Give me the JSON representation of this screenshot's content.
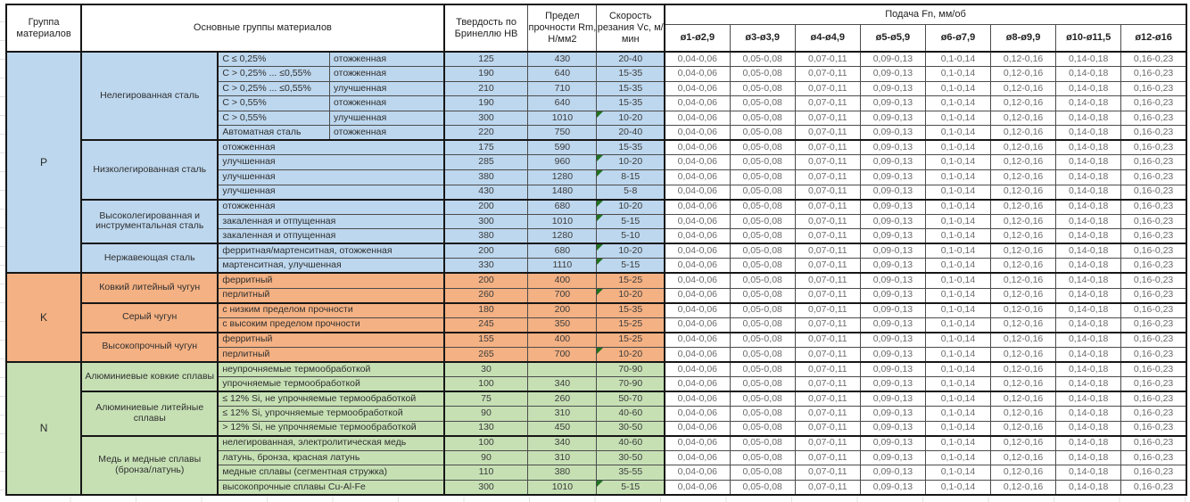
{
  "header": {
    "material_group": "Группа материалов",
    "main_groups": "Основные группы материалов",
    "hardness": "Твердость по Бринеллю HB",
    "strength": "Предел прочности Rm, Н/мм2",
    "cutting_speed": "Скорость резания Vc, м/мин",
    "feed_group": "Подача Fn, мм/об",
    "feed_cols": [
      "ø1-ø2,9",
      "ø3-ø3,9",
      "ø4-ø4,9",
      "ø5-ø5,9",
      "ø6-ø7,9",
      "ø8-ø9,9",
      "ø10-ø11,5",
      "ø12-ø16"
    ]
  },
  "feed_values": [
    "0,04-0,06",
    "0,05-0,08",
    "0,07-0,11",
    "0,09-0,13",
    "0,1-0,14",
    "0,12-0,16",
    "0,14-0,18",
    "0,16-0,23"
  ],
  "flag_color": "#217321",
  "groups": [
    {
      "code": "P",
      "color": "#BDD7EE",
      "subgroups": [
        {
          "name": "Нелегированная сталь",
          "rows": [
            {
              "sub1": "C ≤ 0,25%",
              "sub2": "отожженная",
              "hb": "125",
              "rm": "430",
              "vc": "20-40",
              "flag": false
            },
            {
              "sub1": "C > 0,25% ... ≤0,55%",
              "sub2": "отожженная",
              "hb": "190",
              "rm": "640",
              "vc": "15-35",
              "flag": false
            },
            {
              "sub1": "C > 0,25% ... ≤0,55%",
              "sub2": "улучшенная",
              "hb": "210",
              "rm": "710",
              "vc": "15-35",
              "flag": false
            },
            {
              "sub1": "C > 0,55%",
              "sub2": "отожженная",
              "hb": "190",
              "rm": "640",
              "vc": "15-35",
              "flag": false
            },
            {
              "sub1": "C > 0,55%",
              "sub2": "улучшенная",
              "hb": "300",
              "rm": "1010",
              "vc": "10-20",
              "flag": true
            },
            {
              "sub1": "Автоматная сталь",
              "sub2": "отожженная",
              "hb": "220",
              "rm": "750",
              "vc": "20-40",
              "flag": false
            }
          ]
        },
        {
          "name": "Низколегированная сталь",
          "rows": [
            {
              "sub1": "отожженная",
              "hb": "175",
              "rm": "590",
              "vc": "15-35",
              "flag": false
            },
            {
              "sub1": "улучшенная",
              "hb": "285",
              "rm": "960",
              "vc": "10-20",
              "flag": true
            },
            {
              "sub1": "улучшенная",
              "hb": "380",
              "rm": "1280",
              "vc": "8-15",
              "flag": true
            },
            {
              "sub1": "улучшенная",
              "hb": "430",
              "rm": "1480",
              "vc": "5-8",
              "flag": false
            }
          ]
        },
        {
          "name": "Высоколегированная и инструментальная сталь",
          "rows": [
            {
              "sub1": "отожженная",
              "hb": "200",
              "rm": "680",
              "vc": "10-20",
              "flag": true
            },
            {
              "sub1": "закаленная и отпущенная",
              "hb": "300",
              "rm": "1010",
              "vc": "5-15",
              "flag": true
            },
            {
              "sub1": "закаленная и отпущенная",
              "hb": "380",
              "rm": "1280",
              "vc": "5-10",
              "flag": false
            }
          ]
        },
        {
          "name": "Нержавеющая сталь",
          "rows": [
            {
              "sub1": "ферритная/мартенситная, отожженная",
              "hb": "200",
              "rm": "680",
              "vc": "10-20",
              "flag": true
            },
            {
              "sub1": "мартенситная, улучшенная",
              "hb": "330",
              "rm": "1110",
              "vc": "5-15",
              "flag": true
            }
          ]
        }
      ]
    },
    {
      "code": "K",
      "color": "#F4B183",
      "subgroups": [
        {
          "name": "Ковкий литейный чугун",
          "rows": [
            {
              "sub1": "ферритный",
              "hb": "200",
              "rm": "400",
              "vc": "15-25",
              "flag": false
            },
            {
              "sub1": "перлитный",
              "hb": "260",
              "rm": "700",
              "vc": "10-20",
              "flag": true
            }
          ]
        },
        {
          "name": "Серый чугун",
          "rows": [
            {
              "sub1": "с низким пределом прочности",
              "hb": "180",
              "rm": "200",
              "vc": "15-35",
              "flag": false
            },
            {
              "sub1": "с высоким пределом прочности",
              "hb": "245",
              "rm": "350",
              "vc": "15-25",
              "flag": false
            }
          ]
        },
        {
          "name": "Высокопрочный чугун",
          "rows": [
            {
              "sub1": "ферритный",
              "hb": "155",
              "rm": "400",
              "vc": "15-25",
              "flag": false
            },
            {
              "sub1": "перлитный",
              "hb": "265",
              "rm": "700",
              "vc": "10-20",
              "flag": true
            }
          ]
        }
      ]
    },
    {
      "code": "N",
      "color": "#C6E0B4",
      "subgroups": [
        {
          "name": "Алюминиевые ковкие сплавы",
          "rows": [
            {
              "sub1": "неупрочняемые термообработкой",
              "hb": "30",
              "rm": "",
              "vc": "70-90",
              "flag": false
            },
            {
              "sub1": "упрочняемые термообработкой",
              "hb": "100",
              "rm": "340",
              "vc": "70-90",
              "flag": false
            }
          ]
        },
        {
          "name": "Алюминиевые литейные сплавы",
          "rows": [
            {
              "sub1": "≤ 12% Si, не упрочняемые термообработкой",
              "hb": "75",
              "rm": "260",
              "vc": "50-70",
              "flag": false
            },
            {
              "sub1": "≤ 12% Si, упрочняемые термообработкой",
              "hb": "90",
              "rm": "310",
              "vc": "40-60",
              "flag": false
            },
            {
              "sub1": "> 12% Si, не упрочняемые термообработкой",
              "hb": "130",
              "rm": "450",
              "vc": "30-50",
              "flag": false
            }
          ]
        },
        {
          "name": "Медь и медные сплавы (бронза/латунь)",
          "rows": [
            {
              "sub1": "нелегированная, электролитическая медь",
              "hb": "100",
              "rm": "340",
              "vc": "40-60",
              "flag": false
            },
            {
              "sub1": "латунь, бронза, красная латунь",
              "hb": "90",
              "rm": "310",
              "vc": "30-50",
              "flag": false
            },
            {
              "sub1": "медные сплавы (сегментная стружка)",
              "hb": "110",
              "rm": "380",
              "vc": "35-55",
              "flag": false
            },
            {
              "sub1": "высокопрочные сплавы Cu-Al-Fe",
              "hb": "300",
              "rm": "1010",
              "vc": "5-15",
              "flag": true
            }
          ]
        }
      ]
    }
  ]
}
